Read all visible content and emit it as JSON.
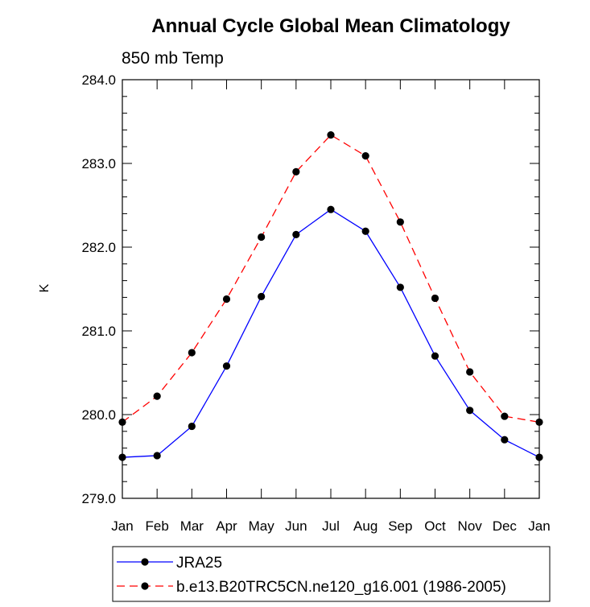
{
  "chart_data": {
    "type": "line",
    "title": "Annual Cycle Global Mean Climatology",
    "subtitle": "850 mb Temp",
    "xlabel": "",
    "ylabel": "K",
    "categories": [
      "Jan",
      "Feb",
      "Mar",
      "Apr",
      "May",
      "Jun",
      "Jul",
      "Aug",
      "Sep",
      "Oct",
      "Nov",
      "Dec",
      "Jan"
    ],
    "ylim": [
      279.0,
      284.0
    ],
    "yticks": [
      279.0,
      280.0,
      281.0,
      282.0,
      283.0,
      284.0
    ],
    "ytick_labels": [
      "279.0",
      "280.0",
      "281.0",
      "282.0",
      "283.0",
      "284.0"
    ],
    "grid": false,
    "legend_position": "bottom",
    "series": [
      {
        "name": "JRA25",
        "color": "#0000ff",
        "dash": "solid",
        "values": [
          279.49,
          279.51,
          279.86,
          280.58,
          281.41,
          282.15,
          282.45,
          282.19,
          281.52,
          280.7,
          280.05,
          279.7,
          279.49
        ]
      },
      {
        "name": "b.e13.B20TRC5CN.ne120_g16.001 (1986-2005)",
        "color": "#ff0000",
        "dash": "dashed",
        "values": [
          279.91,
          280.22,
          280.74,
          281.38,
          282.12,
          282.9,
          283.34,
          283.09,
          282.3,
          281.39,
          280.51,
          279.98,
          279.91
        ]
      }
    ]
  }
}
